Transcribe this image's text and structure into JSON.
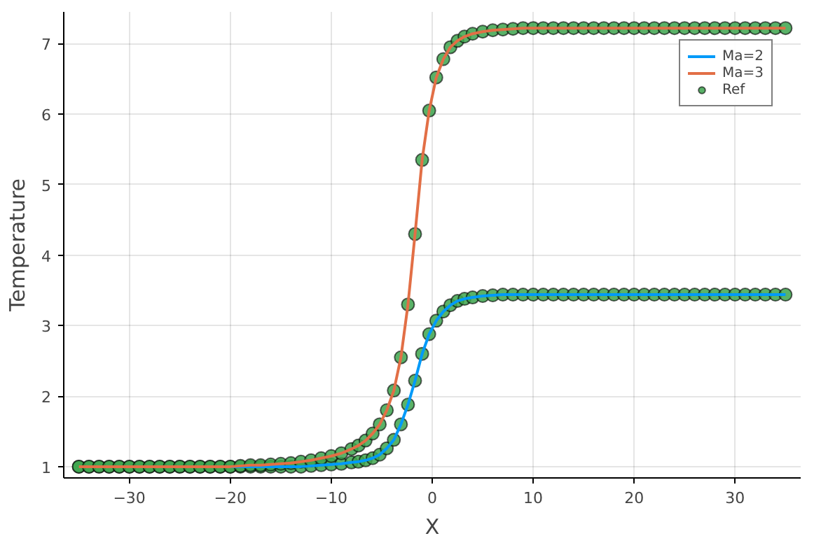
{
  "chart_data": {
    "type": "line",
    "xlabel": "X",
    "ylabel": "Temperature",
    "xlim": [
      -36.5,
      36.5
    ],
    "ylim": [
      0.84,
      7.45
    ],
    "xticks": [
      -30,
      -20,
      -10,
      0,
      10,
      20,
      30
    ],
    "yticks": [
      1,
      2,
      3,
      4,
      5,
      6,
      7
    ],
    "grid": true,
    "legend": "top right",
    "line_style": "solid",
    "series": [
      {
        "name": "Ma=2",
        "color": "#009af9",
        "x": [
          -21,
          -20,
          -19,
          -18,
          -17,
          -16,
          -15,
          -14,
          -13,
          -12,
          -11,
          -10,
          -9,
          -8.0,
          -7.3,
          -6.6,
          -5.9,
          -5.2,
          -4.5,
          -3.8,
          -3.1,
          -2.4,
          -1.7,
          -1.0,
          -0.3,
          0.4,
          1.1,
          1.8,
          2.5,
          3.2,
          4,
          5,
          6,
          7,
          8,
          9,
          10,
          11,
          12,
          13,
          14,
          15,
          16,
          17,
          18,
          19,
          20,
          21,
          22,
          23,
          24,
          25,
          26,
          27,
          28,
          29,
          30,
          31,
          32,
          33,
          34,
          35
        ],
        "values": [
          1.0,
          1.0,
          1.0,
          1.0,
          1.0,
          1.0,
          1.0,
          1.0,
          1.0,
          1.01,
          1.02,
          1.03,
          1.04,
          1.06,
          1.07,
          1.09,
          1.12,
          1.17,
          1.26,
          1.38,
          1.6,
          1.88,
          2.22,
          2.6,
          2.88,
          3.07,
          3.2,
          3.29,
          3.35,
          3.38,
          3.4,
          3.42,
          3.43,
          3.44,
          3.44,
          3.44,
          3.44,
          3.44,
          3.44,
          3.44,
          3.44,
          3.44,
          3.44,
          3.44,
          3.44,
          3.44,
          3.44,
          3.44,
          3.44,
          3.44,
          3.44,
          3.44,
          3.44,
          3.44,
          3.44,
          3.44,
          3.44,
          3.44,
          3.44,
          3.44,
          3.44,
          3.44
        ]
      },
      {
        "name": "Ma=3",
        "color": "#e26f46",
        "x": [
          -35,
          -34,
          -33,
          -32,
          -31,
          -30,
          -29,
          -28,
          -27,
          -26,
          -25,
          -24,
          -23,
          -22,
          -21,
          -20,
          -19,
          -18,
          -17,
          -16,
          -15,
          -14,
          -13,
          -12,
          -11,
          -10,
          -9,
          -8.0,
          -7.3,
          -6.6,
          -5.9,
          -5.2,
          -4.5,
          -3.8,
          -3.1,
          -2.4,
          -1.7,
          -1.0,
          -0.3,
          0.4,
          1.1,
          1.8,
          2.5,
          3.2,
          4,
          5,
          6,
          7,
          8,
          9,
          10,
          11,
          12,
          13,
          14,
          15,
          16,
          17,
          18,
          19,
          20,
          21,
          22,
          23,
          24,
          25,
          26,
          27,
          28,
          29,
          30,
          31,
          32,
          33,
          34,
          35
        ],
        "values": [
          1.0,
          1.0,
          1.0,
          1.0,
          1.0,
          1.0,
          1.0,
          1.0,
          1.0,
          1.0,
          1.0,
          1.0,
          1.0,
          1.0,
          1.0,
          1.0,
          1.01,
          1.02,
          1.02,
          1.03,
          1.04,
          1.05,
          1.07,
          1.09,
          1.12,
          1.15,
          1.19,
          1.25,
          1.3,
          1.37,
          1.47,
          1.6,
          1.8,
          2.08,
          2.55,
          3.3,
          4.3,
          5.35,
          6.05,
          6.52,
          6.78,
          6.95,
          7.04,
          7.1,
          7.14,
          7.17,
          7.19,
          7.2,
          7.21,
          7.22,
          7.22,
          7.22,
          7.22,
          7.22,
          7.22,
          7.22,
          7.22,
          7.22,
          7.22,
          7.22,
          7.22,
          7.22,
          7.22,
          7.22,
          7.22,
          7.22,
          7.22,
          7.22,
          7.22,
          7.22,
          7.22,
          7.22,
          7.22,
          7.22,
          7.22,
          7.22
        ]
      },
      {
        "name": "Ref",
        "color": "#3da44d",
        "type": "scatter",
        "marker": "circle",
        "x": [
          -35,
          -34,
          -33,
          -32,
          -31,
          -30,
          -29,
          -28,
          -27,
          -26,
          -25,
          -24,
          -23,
          -22,
          -21,
          -20,
          -19,
          -18,
          -17,
          -16,
          -15,
          -14,
          -13,
          -12,
          -11,
          -10,
          -9,
          -8.0,
          -7.3,
          -6.6,
          -5.9,
          -5.2,
          -4.5,
          -3.8,
          -3.1,
          -2.4,
          -1.7,
          -1.0,
          -0.3,
          0.4,
          1.1,
          1.8,
          2.5,
          3.2,
          4,
          5,
          6,
          7,
          8,
          9,
          10,
          11,
          12,
          13,
          14,
          15,
          16,
          17,
          18,
          19,
          20,
          21,
          22,
          23,
          24,
          25,
          26,
          27,
          28,
          29,
          30,
          31,
          32,
          33,
          34,
          35,
          -35,
          -34,
          -33,
          -32,
          -31,
          -30,
          -29,
          -28,
          -27,
          -26,
          -25,
          -24,
          -23,
          -22,
          -21,
          -20,
          -19,
          -18,
          -17,
          -16,
          -15,
          -14,
          -13,
          -12,
          -11,
          -10,
          -9,
          -8.0,
          -7.3,
          -6.6,
          -5.9,
          -5.2,
          -4.5,
          -3.8,
          -3.1,
          -2.4,
          -1.7,
          -1.0,
          -0.3,
          0.4,
          1.1,
          1.8,
          2.5,
          3.2,
          4,
          5,
          6,
          7,
          8,
          9,
          10,
          11,
          12,
          13,
          14,
          15,
          16,
          17,
          18,
          19,
          20,
          21,
          22,
          23,
          24,
          25,
          26,
          27,
          28,
          29,
          30,
          31,
          32,
          33,
          34,
          35
        ],
        "values": [
          1.0,
          1.0,
          1.0,
          1.0,
          1.0,
          1.0,
          1.0,
          1.0,
          1.0,
          1.0,
          1.0,
          1.0,
          1.0,
          1.0,
          1.0,
          1.0,
          1.0,
          1.0,
          1.0,
          1.0,
          1.0,
          1.0,
          1.0,
          1.01,
          1.02,
          1.03,
          1.04,
          1.06,
          1.07,
          1.09,
          1.12,
          1.17,
          1.26,
          1.38,
          1.6,
          1.88,
          2.22,
          2.6,
          2.88,
          3.07,
          3.2,
          3.29,
          3.35,
          3.38,
          3.4,
          3.42,
          3.43,
          3.44,
          3.44,
          3.44,
          3.44,
          3.44,
          3.44,
          3.44,
          3.44,
          3.44,
          3.44,
          3.44,
          3.44,
          3.44,
          3.44,
          3.44,
          3.44,
          3.44,
          3.44,
          3.44,
          3.44,
          3.44,
          3.44,
          3.44,
          3.44,
          3.44,
          3.44,
          3.44,
          3.44,
          3.44,
          1.0,
          1.0,
          1.0,
          1.0,
          1.0,
          1.0,
          1.0,
          1.0,
          1.0,
          1.0,
          1.0,
          1.0,
          1.0,
          1.0,
          1.0,
          1.0,
          1.01,
          1.02,
          1.02,
          1.03,
          1.04,
          1.05,
          1.07,
          1.09,
          1.12,
          1.15,
          1.19,
          1.25,
          1.3,
          1.37,
          1.47,
          1.6,
          1.8,
          2.08,
          2.55,
          3.3,
          4.3,
          5.35,
          6.05,
          6.52,
          6.78,
          6.95,
          7.04,
          7.1,
          7.14,
          7.17,
          7.19,
          7.2,
          7.21,
          7.22,
          7.22,
          7.22,
          7.22,
          7.22,
          7.22,
          7.22,
          7.22,
          7.22,
          7.22,
          7.22,
          7.22,
          7.22,
          7.22,
          7.22,
          7.22,
          7.22,
          7.22,
          7.22,
          7.22,
          7.22,
          7.22,
          7.22,
          7.22,
          7.22,
          7.22,
          7.22
        ]
      }
    ]
  }
}
